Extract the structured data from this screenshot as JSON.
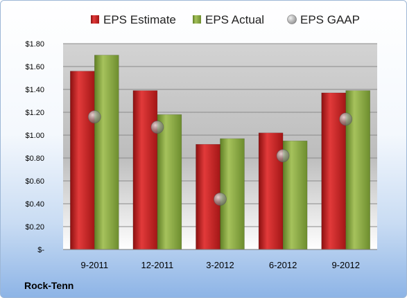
{
  "company": "Rock-Tenn",
  "chart_data": {
    "type": "bar",
    "categories": [
      "9-2011",
      "12-2011",
      "3-2012",
      "6-2012",
      "9-2012"
    ],
    "series": [
      {
        "name": "EPS Estimate",
        "kind": "bar",
        "color": "#d42a2a",
        "values": [
          1.56,
          1.39,
          0.92,
          1.02,
          1.37
        ]
      },
      {
        "name": "EPS Actual",
        "kind": "bar",
        "color": "#8fae45",
        "values": [
          1.7,
          1.18,
          0.97,
          0.95,
          1.39
        ]
      },
      {
        "name": "EPS GAAP",
        "kind": "marker",
        "color": "#a9a9a9",
        "values": [
          1.16,
          1.07,
          0.44,
          0.82,
          1.14
        ]
      }
    ],
    "yticks": [
      "$-",
      "$0.20",
      "$0.40",
      "$0.60",
      "$0.80",
      "$1.00",
      "$1.20",
      "$1.40",
      "$1.60",
      "$1.80"
    ],
    "ylim": [
      0,
      1.8
    ],
    "ystep": 0.2,
    "legend_position": "top",
    "grid": true
  }
}
